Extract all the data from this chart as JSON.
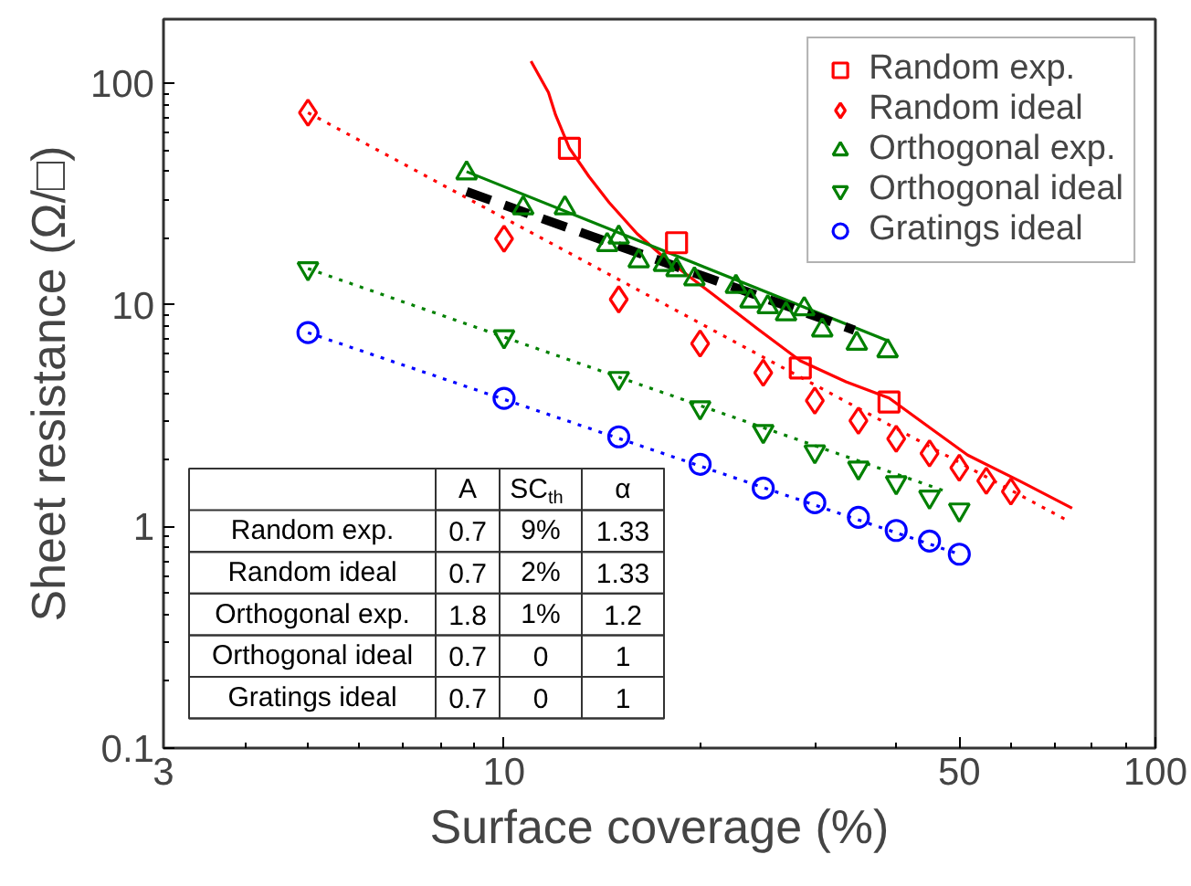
{
  "chart_data": {
    "type": "scatter",
    "xlabel": "Surface coverage (%)",
    "ylabel": "Sheet resistance (Ω/□)",
    "log": "xy",
    "xlim": [
      3,
      100
    ],
    "ylim": [
      0.1,
      195
    ],
    "xticks": [
      3,
      10,
      50,
      100
    ],
    "yticks": [
      0.1,
      1,
      10,
      100
    ],
    "grid": false,
    "legend": "top right",
    "series": [
      {
        "name": "Random exp.",
        "color": "#ff0000",
        "marker": "square",
        "x": [
          12.6,
          18.4,
          28.5,
          39
        ],
        "values": [
          51,
          19.1,
          5.2,
          3.65
        ]
      },
      {
        "name": "Random ideal",
        "color": "#ff0000",
        "marker": "diamond",
        "x": [
          5,
          10,
          15,
          20,
          25,
          30,
          35,
          40,
          45,
          50,
          55,
          60
        ],
        "values": [
          73.8,
          19.9,
          10.6,
          6.7,
          4.94,
          3.7,
          3.0,
          2.49,
          2.14,
          1.84,
          1.61,
          1.44
        ]
      },
      {
        "name": "Orthogonal exp.",
        "color": "#008000",
        "marker": "triangle",
        "x": [
          8.76,
          10.7,
          12.4,
          14.4,
          15.0,
          16.1,
          17.6,
          18.4,
          19.6,
          22.7,
          23.9,
          25.4,
          27.1,
          28.9,
          30.8,
          34.8,
          38.8
        ],
        "values": [
          39.4,
          27.4,
          27.4,
          18.7,
          20.2,
          15.8,
          15.2,
          14.4,
          13.1,
          12.1,
          10.4,
          9.8,
          9.1,
          9.6,
          7.7,
          6.7,
          6.2
        ]
      },
      {
        "name": "Orthogonal ideal",
        "color": "#008000",
        "x": [
          5,
          10,
          15,
          20,
          25,
          30,
          35,
          40,
          45,
          50
        ],
        "values": [
          14.6,
          7.2,
          4.67,
          3.44,
          2.69,
          2.18,
          1.84,
          1.58,
          1.36,
          1.19
        ]
      },
      {
        "name": "Gratings ideal",
        "color": "#0000ff",
        "marker": "circle",
        "x": [
          5,
          10,
          15,
          20,
          25,
          30,
          35,
          40,
          45,
          50
        ],
        "values": [
          7.5,
          3.79,
          2.54,
          1.91,
          1.49,
          1.28,
          1.1,
          0.96,
          0.86,
          0.75
        ]
      },
      {
        "type": "line",
        "color": "#ff0000",
        "line_style": "solid",
        "x": [
          11.0,
          11.7,
          12.0,
          12.6,
          13.5,
          14.5,
          16.0,
          17.6,
          20.9,
          24.5,
          28.5,
          33.5,
          39,
          45,
          51.5,
          62,
          74.5
        ],
        "values": [
          126,
          91,
          72,
          51,
          38,
          29,
          21,
          16.4,
          11.2,
          7.8,
          5.6,
          4.5,
          3.8,
          2.8,
          2.1,
          1.6,
          1.21
        ]
      },
      {
        "type": "line",
        "color": "#ff0000",
        "line_style": "dotted",
        "x": [
          5,
          72.6
        ],
        "values": [
          73.8,
          1.08
        ]
      },
      {
        "type": "line",
        "color": "#008000",
        "line_style": "solid",
        "x": [
          8.76,
          38.8
        ],
        "values": [
          40,
          6.9
        ]
      },
      {
        "type": "line",
        "color": "#008000",
        "line_style": "dotted",
        "x": [
          5,
          47.7
        ],
        "values": [
          14.6,
          1.44
        ]
      },
      {
        "type": "line",
        "color": "#0000ff",
        "line_style": "dotted",
        "x": [
          5,
          50
        ],
        "values": [
          7.5,
          0.75
        ]
      },
      {
        "type": "line",
        "color": "#000000",
        "line_style": "dashed",
        "x": [
          8.76,
          34.5
        ],
        "values": [
          32.5,
          7.7
        ]
      }
    ],
    "annotations": [
      "A",
      "SC$_{th}$",
      "α",
      "Random exp.",
      "0.7",
      "9%",
      "1.33",
      "Random ideal",
      "0.7",
      "2%",
      "1.33",
      "Orthogonal exp.",
      "1.8",
      "1%",
      "1.2",
      "Orthogonal ideal",
      "0.7",
      "0",
      "1",
      "Gratings ideal",
      "0.7",
      "0",
      "1"
    ]
  }
}
